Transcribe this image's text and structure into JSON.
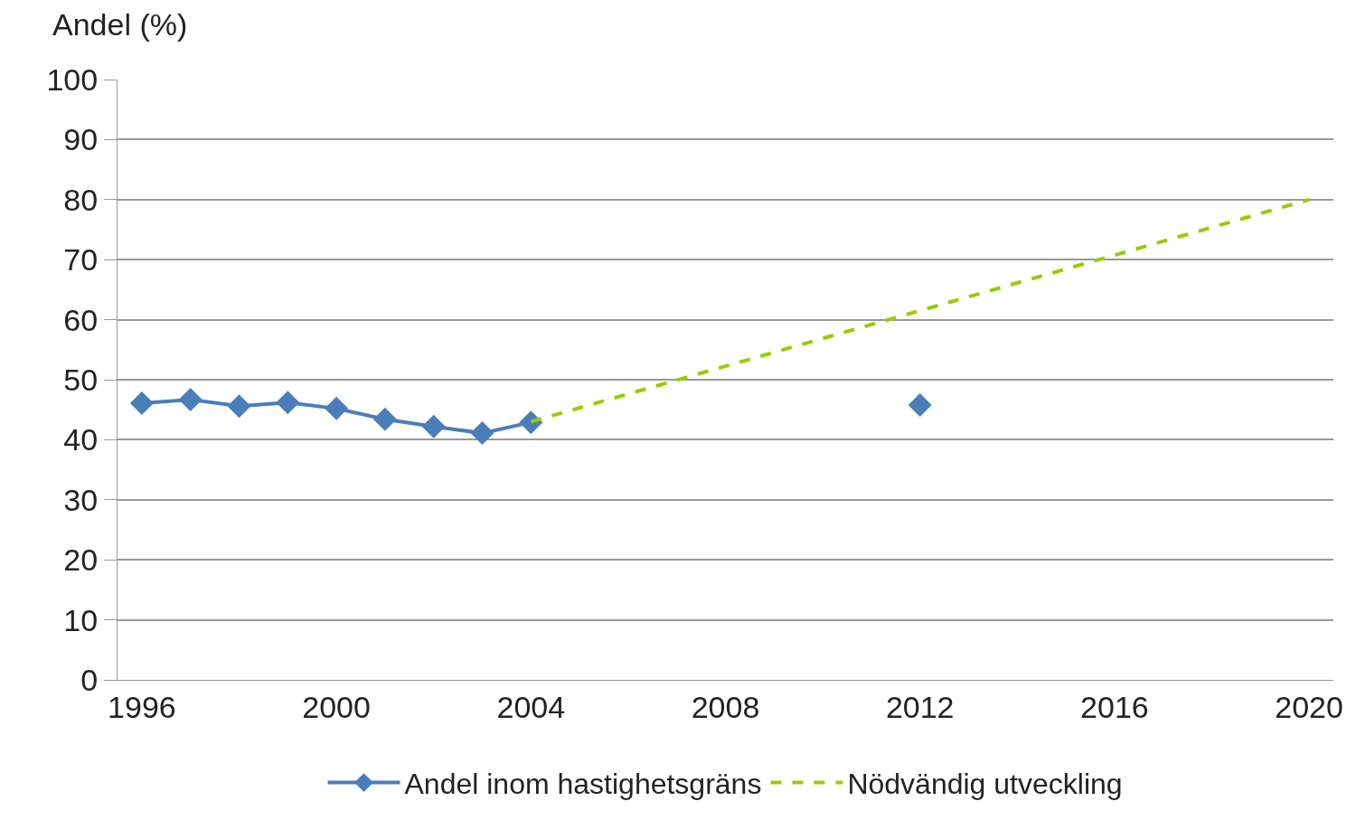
{
  "chart_data": {
    "type": "line",
    "ylabel": "Andel (%)",
    "xlim": [
      1995.5,
      2020.5
    ],
    "xticks": [
      1996,
      2000,
      2004,
      2008,
      2012,
      2016,
      2020
    ],
    "ylim": [
      0,
      100
    ],
    "yticks": [
      0,
      10,
      20,
      30,
      40,
      50,
      60,
      70,
      80,
      90,
      100
    ],
    "grid": "y",
    "legend": "bottom",
    "series": [
      {
        "name": "Andel inom hastighetsgräns",
        "color": "#4a7ebb",
        "marker": "diamond",
        "line_style": "solid",
        "x": [
          1996,
          1997,
          1998,
          1999,
          2000,
          2001,
          2002,
          2003,
          2004,
          2005,
          2006,
          2007,
          2008,
          2009,
          2010,
          2011,
          2012
        ],
        "values": [
          46.1,
          46.7,
          45.6,
          46.2,
          45.2,
          43.4,
          42.2,
          41.1,
          42.9,
          null,
          null,
          null,
          null,
          null,
          null,
          null,
          45.8
        ]
      },
      {
        "name": "Nödvändig utveckling",
        "color": "#99cc00",
        "marker": "none",
        "line_style": "dashed",
        "x": [
          2004,
          2020
        ],
        "values": [
          43,
          80
        ]
      }
    ]
  }
}
